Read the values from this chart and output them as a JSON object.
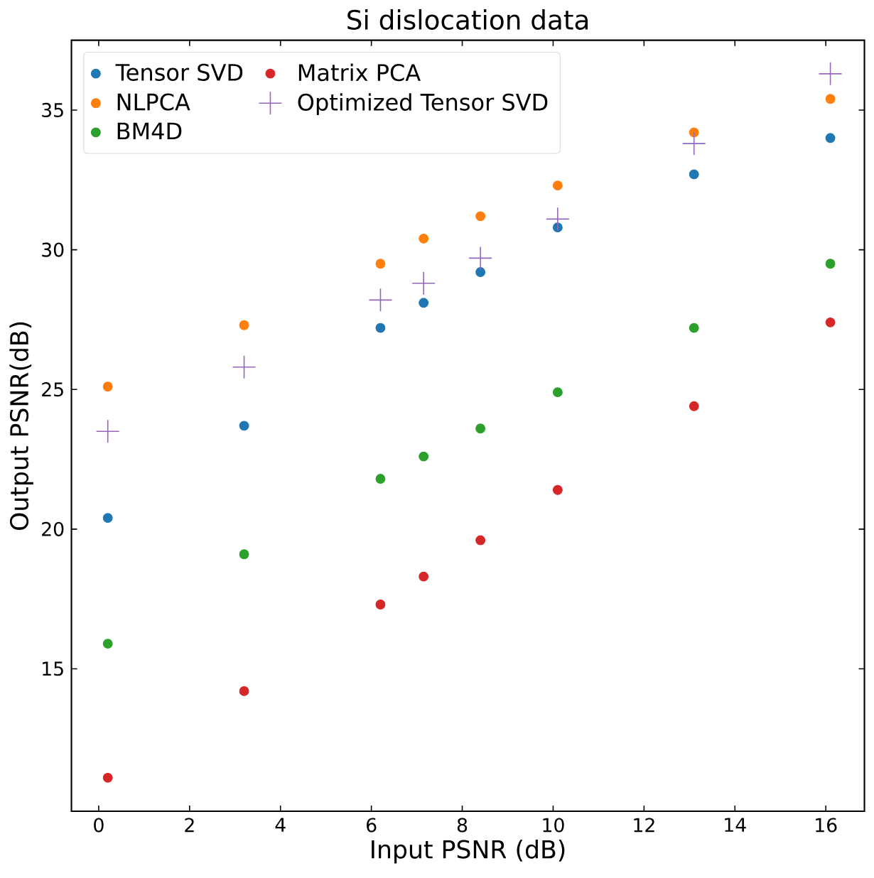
{
  "chart_data": {
    "type": "scatter",
    "title": "Si dislocation data",
    "xlabel": "Input PSNR (dB)",
    "ylabel": "Output PSNR(dB)",
    "x": [
      0.2,
      3.2,
      6.2,
      7.15,
      8.4,
      10.1,
      13.1,
      16.1
    ],
    "xlim": [
      -0.6,
      16.85
    ],
    "ylim": [
      9.9,
      37.5
    ],
    "xticks": [
      0,
      2,
      4,
      6,
      8,
      10,
      12,
      14,
      16
    ],
    "yticks": [
      15,
      20,
      25,
      30,
      35
    ],
    "grid": false,
    "legend": "top left",
    "series": [
      {
        "name": "Tensor SVD",
        "color": "#1f77b4",
        "marker": "circle",
        "values": [
          20.4,
          23.7,
          27.2,
          28.1,
          29.2,
          30.8,
          32.7,
          34.0
        ]
      },
      {
        "name": "NLPCA",
        "color": "#ff7f0e",
        "marker": "circle",
        "values": [
          25.1,
          27.3,
          29.5,
          30.4,
          31.2,
          32.3,
          34.2,
          35.4
        ]
      },
      {
        "name": "BM4D",
        "color": "#2ca02c",
        "marker": "circle",
        "values": [
          15.9,
          19.1,
          21.8,
          22.6,
          23.6,
          24.9,
          27.2,
          29.5
        ]
      },
      {
        "name": "Matrix PCA",
        "color": "#d62728",
        "marker": "circle",
        "values": [
          11.1,
          14.2,
          17.3,
          18.3,
          19.6,
          21.4,
          24.4,
          27.4
        ]
      },
      {
        "name": "Optimized Tensor SVD",
        "color": "#9467bd",
        "marker": "cross",
        "values": [
          23.5,
          25.8,
          28.2,
          28.8,
          29.7,
          31.1,
          33.8,
          36.3
        ]
      }
    ]
  }
}
